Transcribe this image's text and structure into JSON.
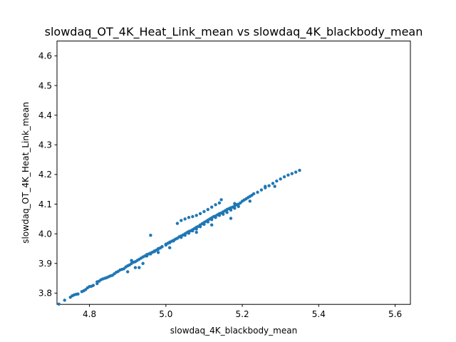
{
  "chart_data": {
    "type": "scatter",
    "title": "slowdaq_OT_4K_Heat_Link_mean vs slowdaq_4K_blackbody_mean",
    "xlabel": "slowdaq_4K_blackbody_mean",
    "ylabel": "slowdaq_OT_4K_Heat_Link_mean",
    "xlim": [
      4.715,
      5.64
    ],
    "ylim": [
      3.762,
      4.65
    ],
    "xticks": [
      "4.8",
      "5.0",
      "5.2",
      "5.4",
      "5.6"
    ],
    "yticks": [
      "3.8",
      "3.9",
      "4.0",
      "4.1",
      "4.2",
      "4.3",
      "4.4",
      "4.5",
      "4.6"
    ],
    "grid": false,
    "marker_color": "#1f77b4",
    "series": [
      {
        "points": [
          [
            4.72,
            3.763
          ],
          [
            4.735,
            3.776
          ],
          [
            4.75,
            3.786
          ],
          [
            4.755,
            3.791
          ],
          [
            4.76,
            3.794
          ],
          [
            4.765,
            3.796
          ],
          [
            4.77,
            3.797
          ],
          [
            4.78,
            3.805
          ],
          [
            4.785,
            3.808
          ],
          [
            4.79,
            3.812
          ],
          [
            4.795,
            3.818
          ],
          [
            4.8,
            3.822
          ],
          [
            4.805,
            3.823
          ],
          [
            4.81,
            3.826
          ],
          [
            4.82,
            3.832
          ],
          [
            4.82,
            3.838
          ],
          [
            4.825,
            3.84
          ],
          [
            4.83,
            3.845
          ],
          [
            4.835,
            3.848
          ],
          [
            4.84,
            3.85
          ],
          [
            4.845,
            3.852
          ],
          [
            4.85,
            3.855
          ],
          [
            4.855,
            3.858
          ],
          [
            4.86,
            3.86
          ],
          [
            4.865,
            3.865
          ],
          [
            4.87,
            3.87
          ],
          [
            4.875,
            3.873
          ],
          [
            4.88,
            3.878
          ],
          [
            4.885,
            3.88
          ],
          [
            4.89,
            3.882
          ],
          [
            4.895,
            3.888
          ],
          [
            4.9,
            3.892
          ],
          [
            4.905,
            3.895
          ],
          [
            4.91,
            3.9
          ],
          [
            4.915,
            3.904
          ],
          [
            4.92,
            3.906
          ],
          [
            4.925,
            3.91
          ],
          [
            4.93,
            3.914
          ],
          [
            4.935,
            3.918
          ],
          [
            4.94,
            3.922
          ],
          [
            4.945,
            3.925
          ],
          [
            4.95,
            3.93
          ],
          [
            4.955,
            3.932
          ],
          [
            4.96,
            3.935
          ],
          [
            4.965,
            3.938
          ],
          [
            4.97,
            3.94
          ],
          [
            4.975,
            3.945
          ],
          [
            4.98,
            3.95
          ],
          [
            4.985,
            3.952
          ],
          [
            4.99,
            3.956
          ],
          [
            5.0,
            3.965
          ],
          [
            5.005,
            3.968
          ],
          [
            5.01,
            3.972
          ],
          [
            5.015,
            3.975
          ],
          [
            5.02,
            3.978
          ],
          [
            5.025,
            3.982
          ],
          [
            5.03,
            3.985
          ],
          [
            5.035,
            3.99
          ],
          [
            5.04,
            3.993
          ],
          [
            5.045,
            3.996
          ],
          [
            5.05,
            4.0
          ],
          [
            5.055,
            4.004
          ],
          [
            5.06,
            4.008
          ],
          [
            5.065,
            4.01
          ],
          [
            5.07,
            4.014
          ],
          [
            5.075,
            4.018
          ],
          [
            5.08,
            4.022
          ],
          [
            5.085,
            4.025
          ],
          [
            5.09,
            4.03
          ],
          [
            5.095,
            4.034
          ],
          [
            5.1,
            4.038
          ],
          [
            5.105,
            4.042
          ],
          [
            5.11,
            4.046
          ],
          [
            5.115,
            4.05
          ],
          [
            5.12,
            4.054
          ],
          [
            5.125,
            4.058
          ],
          [
            5.13,
            4.06
          ],
          [
            5.135,
            4.064
          ],
          [
            5.14,
            4.068
          ],
          [
            5.145,
            4.07
          ],
          [
            5.15,
            4.074
          ],
          [
            5.155,
            4.078
          ],
          [
            5.16,
            4.082
          ],
          [
            5.165,
            4.085
          ],
          [
            5.17,
            4.088
          ],
          [
            5.175,
            4.09
          ],
          [
            5.18,
            4.094
          ],
          [
            5.185,
            4.098
          ],
          [
            5.19,
            4.1
          ],
          [
            5.195,
            4.104
          ],
          [
            5.2,
            4.11
          ],
          [
            5.205,
            4.114
          ],
          [
            5.21,
            4.118
          ],
          [
            5.215,
            4.122
          ],
          [
            5.22,
            4.126
          ],
          [
            5.225,
            4.13
          ],
          [
            5.23,
            4.135
          ],
          [
            5.24,
            4.14
          ],
          [
            5.25,
            4.148
          ],
          [
            5.26,
            4.155
          ],
          [
            5.27,
            4.162
          ],
          [
            5.28,
            4.17
          ],
          [
            5.29,
            4.178
          ],
          [
            5.3,
            4.185
          ],
          [
            5.31,
            4.192
          ],
          [
            5.32,
            4.198
          ],
          [
            5.33,
            4.203
          ],
          [
            5.34,
            4.208
          ],
          [
            5.35,
            4.214
          ],
          [
            4.95,
            3.925
          ],
          [
            4.96,
            3.932
          ],
          [
            4.97,
            3.942
          ],
          [
            4.98,
            3.948
          ],
          [
            4.99,
            3.957
          ],
          [
            5.0,
            3.962
          ],
          [
            5.01,
            3.97
          ],
          [
            5.02,
            3.976
          ],
          [
            5.04,
            3.988
          ],
          [
            5.05,
            3.995
          ],
          [
            5.06,
            4.002
          ],
          [
            5.07,
            4.01
          ],
          [
            5.08,
            4.016
          ],
          [
            5.09,
            4.024
          ],
          [
            5.1,
            4.032
          ],
          [
            5.11,
            4.04
          ],
          [
            5.12,
            4.048
          ],
          [
            5.13,
            4.055
          ],
          [
            5.14,
            4.062
          ],
          [
            5.15,
            4.066
          ],
          [
            5.16,
            4.072
          ],
          [
            5.17,
            4.08
          ],
          [
            5.18,
            4.086
          ],
          [
            5.19,
            4.092
          ],
          [
            5.03,
            4.035
          ],
          [
            5.04,
            4.045
          ],
          [
            5.05,
            4.05
          ],
          [
            5.06,
            4.055
          ],
          [
            5.07,
            4.058
          ],
          [
            5.08,
            4.062
          ],
          [
            5.09,
            4.068
          ],
          [
            5.1,
            4.075
          ],
          [
            5.11,
            4.082
          ],
          [
            5.12,
            4.09
          ],
          [
            5.13,
            4.098
          ],
          [
            5.14,
            4.104
          ],
          [
            5.145,
            4.115
          ],
          [
            5.18,
            4.102
          ],
          [
            4.96,
            3.995
          ],
          [
            4.92,
            3.886
          ],
          [
            4.93,
            3.886
          ],
          [
            4.9,
            3.872
          ],
          [
            5.01,
            3.953
          ],
          [
            4.98,
            3.937
          ],
          [
            5.05,
            3.999
          ],
          [
            5.08,
            4.005
          ],
          [
            5.12,
            4.03
          ],
          [
            5.17,
            4.052
          ],
          [
            5.22,
            4.11
          ],
          [
            5.26,
            4.16
          ],
          [
            5.285,
            4.16
          ],
          [
            4.94,
            3.9
          ],
          [
            4.91,
            3.91
          ]
        ]
      }
    ]
  }
}
